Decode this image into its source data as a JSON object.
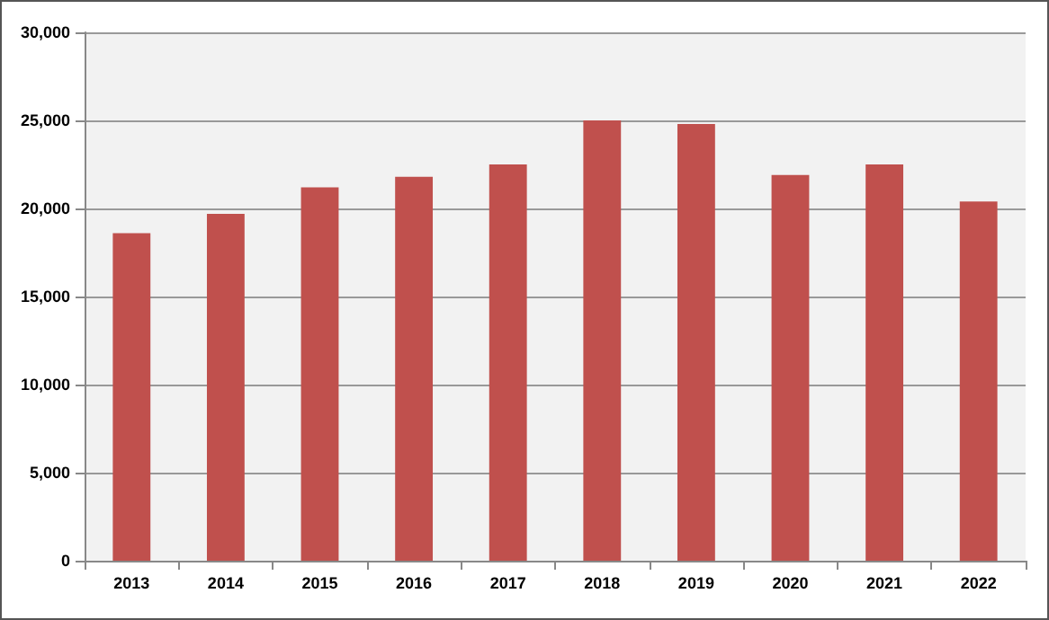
{
  "chart_data": {
    "type": "bar",
    "categories": [
      "2013",
      "2014",
      "2015",
      "2016",
      "2017",
      "2018",
      "2019",
      "2020",
      "2021",
      "2022"
    ],
    "values": [
      18600,
      19700,
      21200,
      21800,
      22500,
      25000,
      24800,
      21900,
      22500,
      20400
    ],
    "color": "#c0504d",
    "ylim": [
      0,
      30000
    ],
    "yticks": [
      0,
      {
        "value": 5000,
        "label": "5,000"
      },
      {
        "value": 10000,
        "label": "10,000"
      },
      {
        "value": 15000,
        "label": "15,000"
      },
      {
        "value": 20000,
        "label": "20,000"
      },
      {
        "value": 25000,
        "label": "25,000"
      },
      {
        "value": 30000,
        "label": "30,000"
      }
    ],
    "grid": "y"
  }
}
